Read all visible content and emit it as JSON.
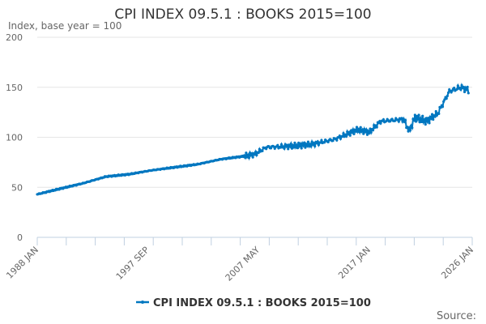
{
  "chart_data": {
    "type": "line",
    "title": "CPI INDEX 09.5.1 : BOOKS 2015=100",
    "ylabel": "Index, base year = 100",
    "xlabel": "",
    "ylim": [
      0,
      200
    ],
    "yticks": [
      "0",
      "50",
      "100",
      "150",
      "200"
    ],
    "xlim_years": [
      1988,
      2026
    ],
    "xtick_labels": [
      {
        "label": "1988 JAN",
        "year": 1988.0
      },
      {
        "label": "1997 SEP",
        "year": 1997.67
      },
      {
        "label": "2007 MAY",
        "year": 2007.33
      },
      {
        "label": "2017 JAN",
        "year": 2017.0
      },
      {
        "label": "2026 JAN",
        "year": 2026.0
      }
    ],
    "minor_tick_count": 15,
    "series": [
      {
        "name": "CPI INDEX 09.5.1 : BOOKS 2015=100",
        "color": "#0077c0",
        "x": [
          1988,
          1990,
          1992,
          1994,
          1996,
          1998,
          2000,
          2002,
          2004,
          2006,
          2007,
          2008,
          2010,
          2012,
          2014,
          2016,
          2017,
          2018,
          2019,
          2020,
          2020.5,
          2021,
          2022,
          2023,
          2023.5,
          2024,
          2025,
          2025.7
        ],
        "values": [
          43,
          48.6,
          54,
          60.7,
          63,
          67,
          70,
          73,
          78,
          81,
          83,
          90,
          91,
          93,
          98,
          107.7,
          105,
          116,
          117,
          118,
          106,
          120,
          116,
          124,
          135,
          146,
          150,
          147
        ]
      }
    ],
    "legend": {
      "label": "CPI INDEX 09.5.1 : BOOKS 2015=100",
      "position": "bottom"
    },
    "grid": true
  },
  "source_label": "Source:"
}
